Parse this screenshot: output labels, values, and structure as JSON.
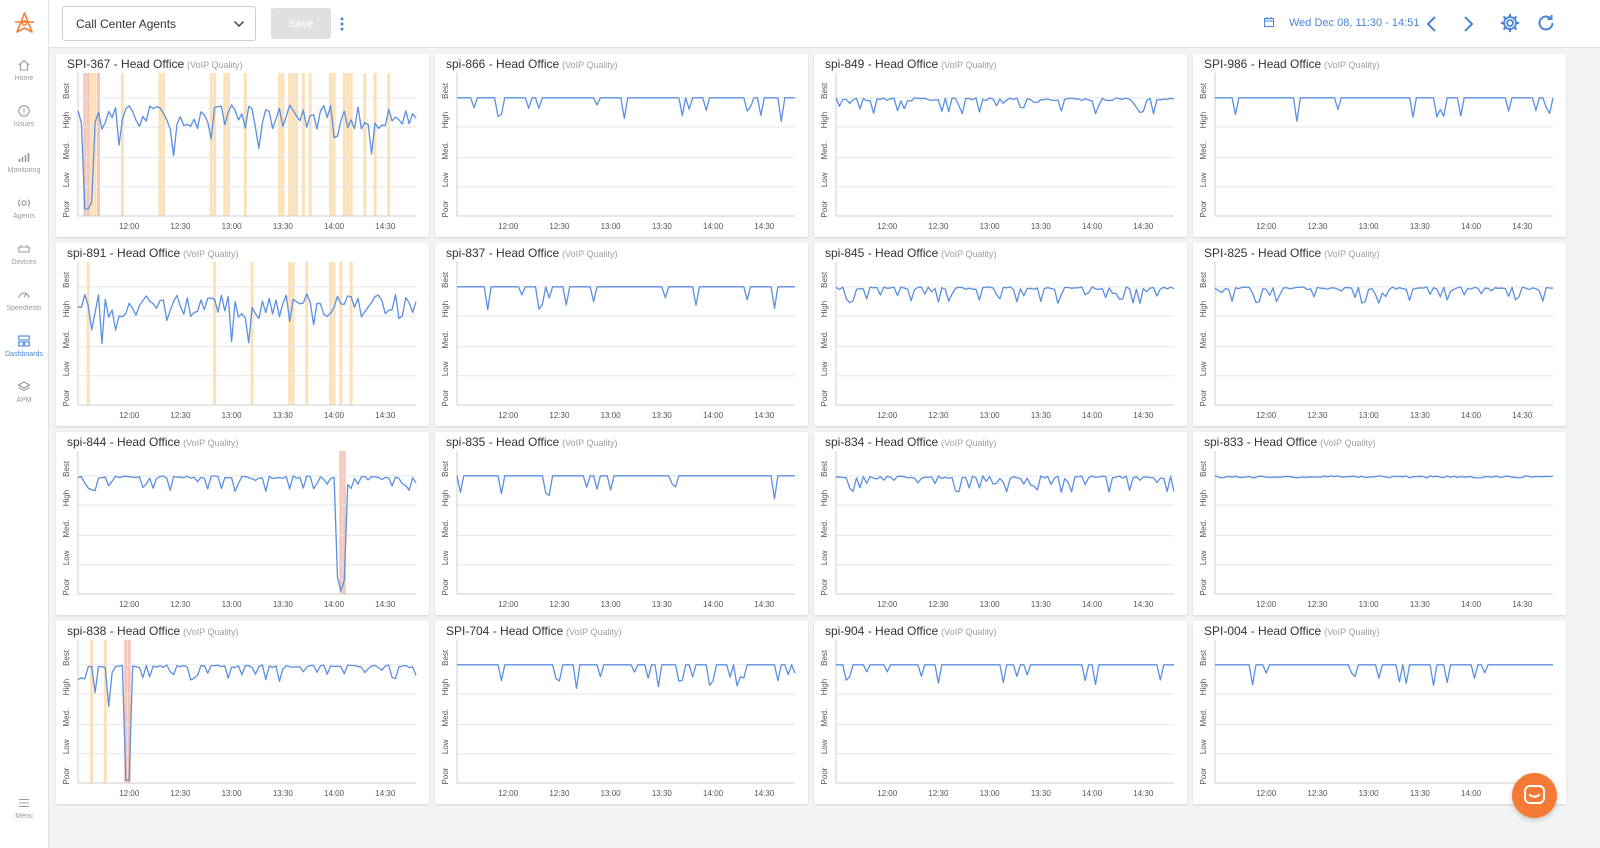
{
  "sidebar": {
    "items": [
      {
        "id": "home",
        "label": "Home",
        "icon": "home-icon"
      },
      {
        "id": "issues",
        "label": "Issues",
        "icon": "alert-icon"
      },
      {
        "id": "monitoring",
        "label": "Monitoring",
        "icon": "bar-chart-icon"
      },
      {
        "id": "agents",
        "label": "Agents",
        "icon": "agent-icon"
      },
      {
        "id": "devices",
        "label": "Devices",
        "icon": "device-icon"
      },
      {
        "id": "speedtests",
        "label": "Speedtests",
        "icon": "gauge-icon"
      },
      {
        "id": "dashboards",
        "label": "Dashboards",
        "icon": "dashboard-icon",
        "active": true
      },
      {
        "id": "apm",
        "label": "APM",
        "icon": "layers-icon"
      }
    ],
    "menu_label": "Menu"
  },
  "topbar": {
    "dashboard_name": "Call Center Agents",
    "save_label": "Save",
    "date_range": "Wed Dec 08, 11:30 - 14:51"
  },
  "colors": {
    "accent": "#4a86d8",
    "line": "#5b8fe0",
    "issue_bar": "#fbe0b8",
    "issue_bar_severe": "#f6c4b8",
    "chat": "#f47a36"
  },
  "chart_data": [
    {
      "type": "line",
      "title": "SPI-367 - Head Office",
      "subtitle": "(VoIP Quality)",
      "pattern": "noisy",
      "drops": [
        [
          2,
          0.95
        ],
        [
          3,
          0.95
        ],
        [
          4,
          0.9
        ]
      ],
      "issues": [
        [
          2,
          "severe"
        ],
        [
          3,
          "severe"
        ],
        [
          4,
          "warn"
        ],
        [
          5,
          "warn"
        ],
        [
          6,
          "severe"
        ],
        [
          13,
          "warn"
        ],
        [
          24,
          "warn"
        ],
        [
          25,
          "warn"
        ],
        [
          39,
          "warn"
        ],
        [
          40,
          "warn"
        ],
        [
          43,
          "warn"
        ],
        [
          44,
          "warn"
        ],
        [
          49,
          "warn"
        ],
        [
          59,
          "warn"
        ],
        [
          60,
          "warn"
        ],
        [
          62,
          "warn"
        ],
        [
          63,
          "warn"
        ],
        [
          64,
          "warn"
        ],
        [
          66,
          "warn"
        ],
        [
          68,
          "warn"
        ],
        [
          74,
          "warn"
        ],
        [
          75,
          "warn"
        ],
        [
          78,
          "warn"
        ],
        [
          79,
          "warn"
        ],
        [
          80,
          "warn"
        ],
        [
          84,
          "warn"
        ],
        [
          87,
          "warn"
        ],
        [
          91,
          "warn"
        ]
      ]
    },
    {
      "type": "line",
      "title": "spi-866 - Head Office",
      "subtitle": "(VoIP Quality)",
      "pattern": "stable",
      "drops": [
        [
          5,
          0.22
        ]
      ],
      "issues": []
    },
    {
      "type": "line",
      "title": "spi-849 - Head Office",
      "subtitle": "(VoIP Quality)",
      "pattern": "jitter",
      "drops": [],
      "issues": []
    },
    {
      "type": "line",
      "title": "SPI-986 - Head Office",
      "subtitle": "(VoIP Quality)",
      "pattern": "stable",
      "drops": [],
      "issues": []
    },
    {
      "type": "line",
      "title": "spi-891 - Head Office",
      "subtitle": "(VoIP Quality)",
      "pattern": "noisy",
      "drops": [
        [
          62,
          0.4
        ]
      ],
      "issues": [
        [
          3,
          "warn"
        ],
        [
          40,
          "warn"
        ],
        [
          51,
          "warn"
        ],
        [
          62,
          "warn"
        ],
        [
          63,
          "warn"
        ],
        [
          67,
          "warn"
        ],
        [
          74,
          "warn"
        ],
        [
          75,
          "warn"
        ],
        [
          77,
          "warn"
        ],
        [
          80,
          "warn"
        ]
      ]
    },
    {
      "type": "line",
      "title": "spi-837 - Head Office",
      "subtitle": "(VoIP Quality)",
      "pattern": "stable",
      "drops": [],
      "issues": []
    },
    {
      "type": "line",
      "title": "spi-845 - Head Office",
      "subtitle": "(VoIP Quality)",
      "pattern": "jitter",
      "drops": [],
      "issues": []
    },
    {
      "type": "line",
      "title": "SPI-825 - Head Office",
      "subtitle": "(VoIP Quality)",
      "pattern": "jitter",
      "drops": [],
      "issues": []
    },
    {
      "type": "line",
      "title": "spi-844 - Head Office",
      "subtitle": "(VoIP Quality)",
      "pattern": "jitter",
      "drops": [
        [
          76,
          0.88
        ],
        [
          77,
          0.98
        ],
        [
          78,
          0.9
        ]
      ],
      "issues": [
        [
          77,
          "severe"
        ],
        [
          78,
          "severe"
        ]
      ]
    },
    {
      "type": "line",
      "title": "spi-835 - Head Office",
      "subtitle": "(VoIP Quality)",
      "pattern": "stable",
      "drops": [],
      "issues": []
    },
    {
      "type": "line",
      "title": "spi-834 - Head Office",
      "subtitle": "(VoIP Quality)",
      "pattern": "jitter",
      "drops": [],
      "issues": []
    },
    {
      "type": "line",
      "title": "spi-833 - Head Office",
      "subtitle": "(VoIP Quality)",
      "pattern": "flat",
      "drops": [],
      "issues": []
    },
    {
      "type": "line",
      "title": "spi-838 - Head Office",
      "subtitle": "(VoIP Quality)",
      "pattern": "jitter",
      "drops": [
        [
          5,
          0.35
        ],
        [
          9,
          0.45
        ],
        [
          14,
          0.98
        ],
        [
          15,
          0.98
        ]
      ],
      "issues": [
        [
          4,
          "warn"
        ],
        [
          8,
          "warn"
        ],
        [
          14,
          "severe"
        ],
        [
          15,
          "severe"
        ]
      ]
    },
    {
      "type": "line",
      "title": "SPI-704 - Head Office",
      "subtitle": "(VoIP Quality)",
      "pattern": "stable",
      "drops": [],
      "issues": []
    },
    {
      "type": "line",
      "title": "spi-904 - Head Office",
      "subtitle": "(VoIP Quality)",
      "pattern": "stable",
      "drops": [],
      "issues": []
    },
    {
      "type": "line",
      "title": "SPI-004 - Head Office",
      "subtitle": "(VoIP Quality)",
      "pattern": "stable",
      "drops": [],
      "issues": []
    }
  ],
  "chart_axes": {
    "y_labels": [
      "Best",
      "High",
      "Med.",
      "Low",
      "Poor"
    ],
    "x_labels": [
      "12:00",
      "12:30",
      "13:00",
      "13:30",
      "14:00",
      "14:30"
    ]
  }
}
